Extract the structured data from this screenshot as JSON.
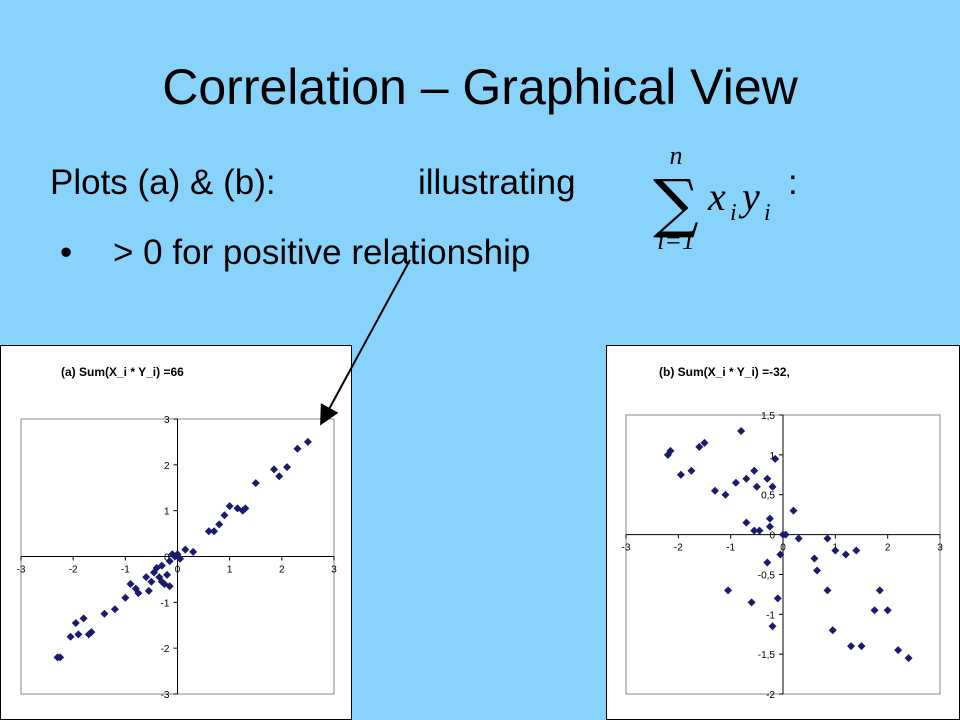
{
  "slide": {
    "title": "Correlation – Graphical View",
    "line1_a": "Plots (a) & (b):",
    "line1_b": "illustrating",
    "colon": ":",
    "bullet": "•",
    "bullet_text": "> 0  for positive relationship"
  },
  "formula": {
    "upper": "n",
    "lower": "i=1",
    "sigma": "∑",
    "x": "x",
    "xi": "i",
    "y": "y",
    "yi": "i"
  },
  "chart_data": [
    {
      "type": "scatter",
      "title": "(a)   Sum(X_i * Y_i) =66",
      "xlim": [
        -3,
        3
      ],
      "ylim": [
        -3,
        3
      ],
      "xticks": [
        "-3",
        "-2",
        "-1",
        "0",
        "1",
        "2",
        "3"
      ],
      "yticks": [
        "3",
        "2",
        "1",
        "0",
        "-1",
        "-2",
        "-3"
      ],
      "marker_color": "#1a1a6e",
      "x": [
        -2.3,
        -2.25,
        -2.05,
        -1.95,
        -1.9,
        -1.8,
        -1.7,
        -1.65,
        -1.4,
        -1.2,
        -1.0,
        -0.9,
        -0.8,
        -0.75,
        -0.6,
        -0.55,
        -0.5,
        -0.45,
        -0.4,
        -0.35,
        -0.3,
        -0.3,
        -0.25,
        -0.2,
        -0.15,
        -0.15,
        -0.1,
        -0.05,
        0.0,
        0.05,
        0.15,
        0.3,
        0.6,
        0.7,
        0.8,
        0.9,
        1.0,
        1.15,
        1.25,
        1.3,
        1.5,
        1.85,
        1.95,
        2.1,
        2.3,
        2.5
      ],
      "y": [
        -2.2,
        -2.2,
        -1.75,
        -1.45,
        -1.7,
        -1.35,
        -1.7,
        -1.65,
        -1.25,
        -1.15,
        -0.9,
        -0.6,
        -0.7,
        -0.8,
        -0.45,
        -0.75,
        -0.55,
        -0.35,
        -0.25,
        -0.45,
        -0.55,
        -0.2,
        -0.6,
        -0.4,
        -0.65,
        -0.1,
        0.05,
        0.0,
        0.05,
        -0.05,
        0.15,
        0.1,
        0.55,
        0.55,
        0.7,
        0.9,
        1.1,
        1.05,
        1.0,
        1.05,
        1.6,
        1.9,
        1.75,
        1.95,
        2.35,
        2.5
      ]
    },
    {
      "type": "scatter",
      "title": "(b)  Sum(X_i * Y_i) =-32,",
      "xlim": [
        -3,
        3
      ],
      "ylim": [
        -2,
        1.5
      ],
      "xticks": [
        "-3",
        "-2",
        "-1",
        "0",
        "1",
        "2",
        "3"
      ],
      "yticks": [
        "1,5",
        "1",
        "0,5",
        "0",
        "-0,5",
        "-1",
        "-1,5",
        "-2"
      ],
      "marker_color": "#1a1a6e",
      "x": [
        -2.2,
        -2.15,
        -1.95,
        -1.75,
        -1.6,
        -1.5,
        -1.3,
        -1.1,
        -1.05,
        -0.9,
        -0.8,
        -0.7,
        -0.7,
        -0.6,
        -0.55,
        -0.55,
        -0.5,
        -0.45,
        -0.3,
        -0.3,
        -0.25,
        -0.25,
        -0.2,
        -0.2,
        -0.15,
        -0.1,
        -0.05,
        0.0,
        0.05,
        0.2,
        0.3,
        0.6,
        0.65,
        0.85,
        0.85,
        0.95,
        1.0,
        1.2,
        1.3,
        1.4,
        1.5,
        1.75,
        1.85,
        2.0,
        2.2,
        2.4
      ],
      "y": [
        1.0,
        1.05,
        0.75,
        0.8,
        1.1,
        1.15,
        0.55,
        0.5,
        -0.7,
        0.65,
        1.3,
        0.15,
        0.7,
        -0.85,
        0.8,
        0.05,
        0.6,
        0.05,
        0.7,
        -0.35,
        0.1,
        0.2,
        0.6,
        -1.15,
        0.95,
        -0.8,
        -0.25,
        0.0,
        0.0,
        0.3,
        -0.05,
        -0.3,
        -0.45,
        -0.7,
        -0.05,
        -1.2,
        -0.2,
        -0.25,
        -1.4,
        -0.2,
        -1.4,
        -0.95,
        -0.7,
        -0.95,
        -1.45,
        -1.55
      ]
    }
  ]
}
